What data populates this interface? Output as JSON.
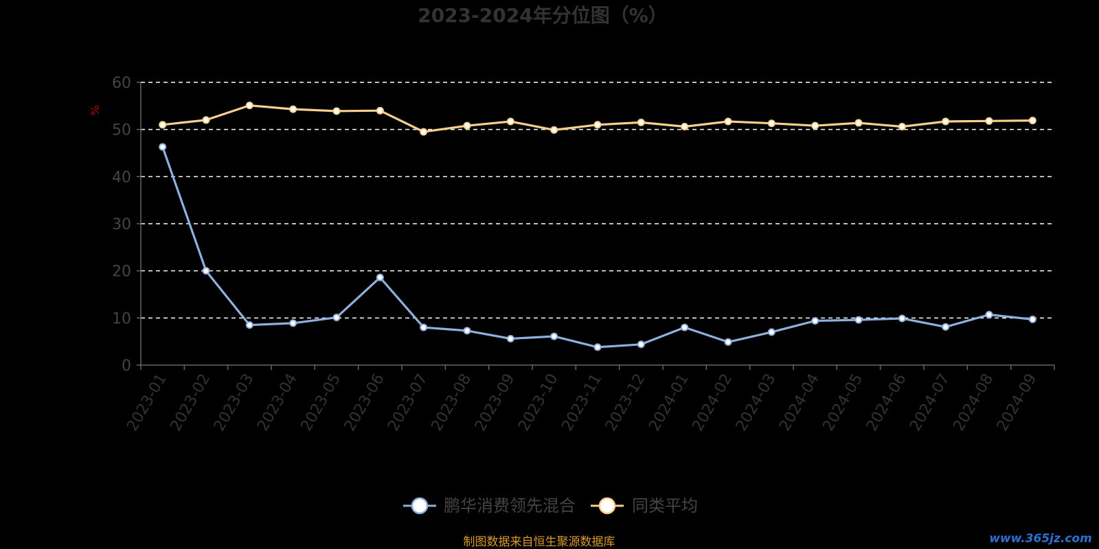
{
  "chart_data": {
    "type": "line",
    "title": "2023-2024年分位图（%）",
    "ylabel": "%",
    "ylim": [
      0,
      60
    ],
    "yticks": [
      0,
      10,
      20,
      30,
      40,
      50,
      60
    ],
    "grid": true,
    "legend_position": "bottom",
    "categories": [
      "2023-01",
      "2023-02",
      "2023-03",
      "2023-04",
      "2023-05",
      "2023-06",
      "2023-07",
      "2023-08",
      "2023-09",
      "2023-10",
      "2023-11",
      "2023-12",
      "2024-01",
      "2024-02",
      "2024-03",
      "2024-04",
      "2024-05",
      "2024-06",
      "2024-07",
      "2024-08",
      "2024-09"
    ],
    "series": [
      {
        "name": "鹏华消费领先混合",
        "color": "#8fb0dd",
        "values": [
          46.3,
          20.0,
          8.5,
          8.9,
          10.1,
          18.6,
          8.0,
          7.3,
          5.6,
          6.1,
          3.8,
          4.4,
          8.0,
          4.9,
          7.0,
          9.4,
          9.6,
          9.9,
          8.1,
          10.7,
          9.7
        ]
      },
      {
        "name": "同类平均",
        "color": "#f8d08e",
        "values": [
          51.0,
          52.0,
          55.1,
          54.3,
          53.9,
          54.0,
          49.5,
          50.8,
          51.7,
          49.9,
          51.0,
          51.5,
          50.6,
          51.7,
          51.3,
          50.8,
          51.4,
          50.6,
          51.7,
          51.8,
          51.9
        ]
      }
    ]
  },
  "footer": {
    "source": "制图数据来自恒生聚源数据库",
    "watermark": "www.365jz.com"
  }
}
